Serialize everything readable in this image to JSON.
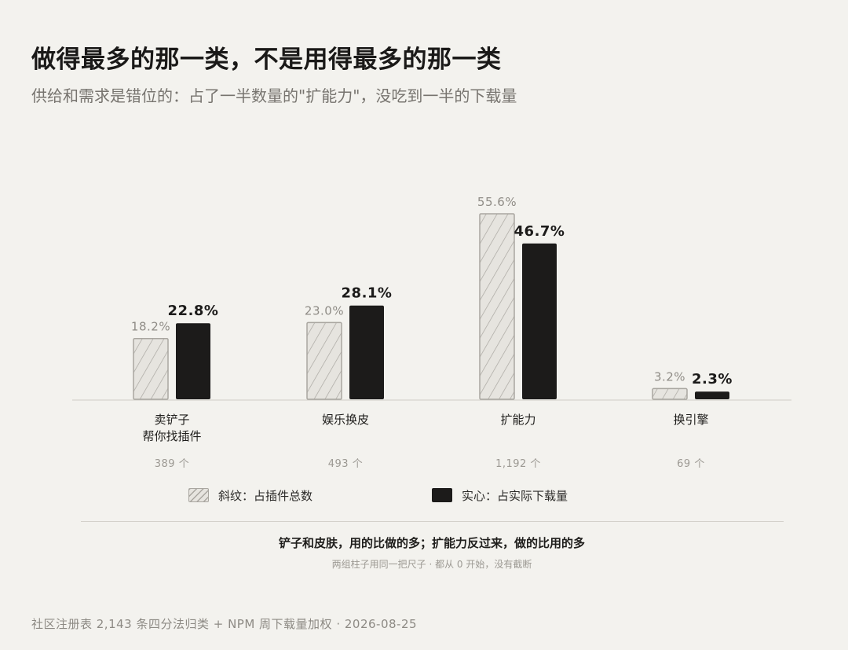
{
  "header": {
    "title": "做得最多的那一类，不是用得最多的那一类",
    "subtitle": "供给和需求是错位的：占了一半数量的\"扩能力\"，没吃到一半的下载量"
  },
  "chart_data": {
    "type": "bar",
    "categories": [
      {
        "label_lines": [
          "卖铲子",
          "帮你找插件"
        ],
        "count_label": "389 个"
      },
      {
        "label_lines": [
          "娱乐换皮"
        ],
        "count_label": "493 个"
      },
      {
        "label_lines": [
          "扩能力"
        ],
        "count_label": "1,192 个"
      },
      {
        "label_lines": [
          "换引擎"
        ],
        "count_label": "69 个"
      }
    ],
    "series": [
      {
        "name": "斜纹：占插件总数",
        "style": "hatched",
        "values": [
          18.2,
          23.0,
          55.6,
          3.2
        ],
        "value_labels": [
          "18.2%",
          "23.0%",
          "55.6%",
          "3.2%"
        ]
      },
      {
        "name": "实心：占实际下载量",
        "style": "solid",
        "values": [
          22.8,
          28.1,
          46.7,
          2.3
        ],
        "value_labels": [
          "22.8%",
          "28.1%",
          "46.7%",
          "2.3%"
        ]
      }
    ],
    "ylim": [
      0,
      55.6
    ],
    "grid": false,
    "legend_position": "bottom",
    "colors": {
      "hatch_fill": "#e6e4df",
      "hatch_line": "#a9a6a0",
      "solid": "#1c1b1a",
      "axis": "#cfccc6"
    }
  },
  "notes": {
    "main": "铲子和皮肤，用的比做的多；扩能力反过来，做的比用的多",
    "sub": "两组柱子用同一把尺子 · 都从 0 开始，没有截断"
  },
  "footer": "社区注册表 2,143 条四分法归类 + NPM 周下载量加权 · 2026-08-25"
}
